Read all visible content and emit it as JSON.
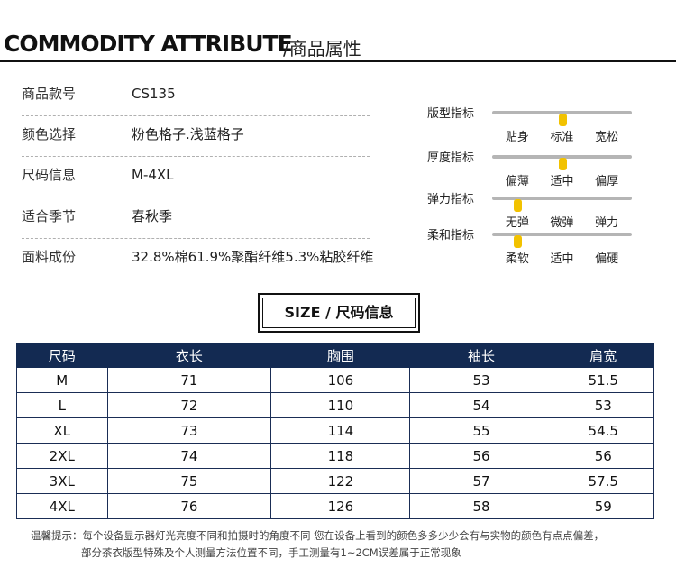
{
  "header": {
    "title": "COMMODITY ATTRIBUTE",
    "subtitle": "/商品属性"
  },
  "attributes": [
    {
      "label": "商品款号",
      "value": "CS135"
    },
    {
      "label": "颜色选择",
      "value": "粉色格子.浅蓝格子"
    },
    {
      "label": "尺码信息",
      "value": "M-4XL"
    },
    {
      "label": "适合季节",
      "value": "春秋季"
    },
    {
      "label": "面料成份",
      "value": "32.8%棉61.9%聚酯纤维5.3%粘胶纤维"
    }
  ],
  "indicators": [
    {
      "label": "版型指标",
      "options": [
        "贴身",
        "标准",
        "宽松"
      ],
      "selected_index": 1,
      "level": 0.5
    },
    {
      "label": "厚度指标",
      "options": [
        "偏薄",
        "适中",
        "偏厚"
      ],
      "selected_index": 1,
      "level": 0.5
    },
    {
      "label": "弹力指标",
      "options": [
        "无弹",
        "微弹",
        "弹力"
      ],
      "selected_index": 0,
      "level": 0.18
    },
    {
      "label": "柔和指标",
      "options": [
        "柔软",
        "适中",
        "偏硬"
      ],
      "selected_index": 0,
      "level": 0.18
    }
  ],
  "indicator_color": "#f2c200",
  "size_section": {
    "title_en": "SIZE /",
    "title_cn": "尺码信息"
  },
  "table": {
    "header_color": "#132a52",
    "columns": [
      "尺码",
      "衣长",
      "胸围",
      "袖长",
      "肩宽"
    ],
    "rows": [
      [
        "M",
        "71",
        "106",
        "53",
        "51.5"
      ],
      [
        "L",
        "72",
        "110",
        "54",
        "53"
      ],
      [
        "XL",
        "73",
        "114",
        "55",
        "54.5"
      ],
      [
        "2XL",
        "74",
        "118",
        "56",
        "56"
      ],
      [
        "3XL",
        "75",
        "122",
        "57",
        "57.5"
      ],
      [
        "4XL",
        "76",
        "126",
        "58",
        "59"
      ]
    ]
  },
  "notes": [
    "温馨提示：每个设备显示器灯光亮度不同和拍摄时的角度不同 您在设备上看到的颜色多多少少会有与实物的颜色有点点偏差，",
    "部分茶衣版型特殊及个人测量方法位置不同，手工测量有1~2CM误差属于正常现象"
  ]
}
